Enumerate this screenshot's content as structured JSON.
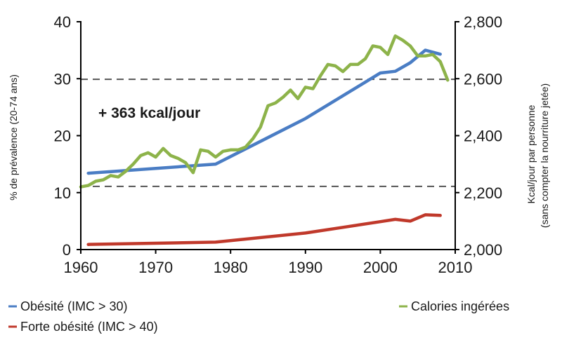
{
  "chart_data": {
    "type": "line",
    "annotation": "+ 363 kcal/jour",
    "y_left": {
      "label": "% de prévalence (20-74 ans)",
      "range": [
        0,
        40
      ],
      "ticks": [
        0,
        10,
        20,
        30,
        40
      ],
      "tick_labels": [
        "0",
        "10",
        "20",
        "30",
        "40"
      ]
    },
    "y_right": {
      "label_line1": "Kcal/jour par personne",
      "label_line2": "(sans compter la nourriture jetée)",
      "range": [
        2000,
        2800
      ],
      "ticks": [
        2000,
        2200,
        2400,
        2600,
        2800
      ],
      "tick_labels": [
        "2,000",
        "2,200",
        "2,400",
        "2,600",
        "2,800"
      ]
    },
    "x_axis": {
      "range": [
        1960,
        2010
      ],
      "ticks": [
        1960,
        1970,
        1980,
        1990,
        2000,
        2010
      ],
      "tick_labels": [
        "1960",
        "1970",
        "1980",
        "1990",
        "2000",
        "2010"
      ]
    },
    "reference_lines_right": [
      2222,
      2598
    ],
    "series": [
      {
        "name": "Obésité (IMC > 30)",
        "color": "#4a7dc4",
        "axis": "left",
        "points": [
          [
            1961,
            13.4
          ],
          [
            1978,
            15.0
          ],
          [
            1990,
            23.0
          ],
          [
            2000,
            31.0
          ],
          [
            2002,
            31.3
          ],
          [
            2004,
            32.8
          ],
          [
            2006,
            35.0
          ],
          [
            2008,
            34.3
          ]
        ]
      },
      {
        "name": "Forte obésité (IMC > 40)",
        "color": "#c0392b",
        "axis": "left",
        "points": [
          [
            1961,
            0.9
          ],
          [
            1978,
            1.3
          ],
          [
            1990,
            2.9
          ],
          [
            1995,
            3.9
          ],
          [
            2000,
            4.9
          ],
          [
            2002,
            5.3
          ],
          [
            2004,
            5.0
          ],
          [
            2006,
            6.1
          ],
          [
            2008,
            6.0
          ]
        ]
      },
      {
        "name": "Calories ingérées",
        "color": "#8db34a",
        "axis": "right",
        "points": [
          [
            1960,
            2220
          ],
          [
            1961,
            2225
          ],
          [
            1962,
            2240
          ],
          [
            1963,
            2245
          ],
          [
            1964,
            2260
          ],
          [
            1965,
            2255
          ],
          [
            1966,
            2275
          ],
          [
            1967,
            2300
          ],
          [
            1968,
            2330
          ],
          [
            1969,
            2340
          ],
          [
            1970,
            2325
          ],
          [
            1971,
            2355
          ],
          [
            1972,
            2330
          ],
          [
            1973,
            2320
          ],
          [
            1974,
            2305
          ],
          [
            1975,
            2270
          ],
          [
            1976,
            2350
          ],
          [
            1977,
            2345
          ],
          [
            1978,
            2325
          ],
          [
            1979,
            2345
          ],
          [
            1980,
            2350
          ],
          [
            1981,
            2350
          ],
          [
            1982,
            2360
          ],
          [
            1983,
            2390
          ],
          [
            1984,
            2430
          ],
          [
            1985,
            2505
          ],
          [
            1986,
            2515
          ],
          [
            1987,
            2535
          ],
          [
            1988,
            2560
          ],
          [
            1989,
            2530
          ],
          [
            1990,
            2570
          ],
          [
            1991,
            2565
          ],
          [
            1992,
            2610
          ],
          [
            1993,
            2650
          ],
          [
            1994,
            2645
          ],
          [
            1995,
            2625
          ],
          [
            1996,
            2650
          ],
          [
            1997,
            2650
          ],
          [
            1998,
            2670
          ],
          [
            1999,
            2715
          ],
          [
            2000,
            2710
          ],
          [
            2001,
            2685
          ],
          [
            2002,
            2750
          ],
          [
            2003,
            2735
          ],
          [
            2004,
            2715
          ],
          [
            2005,
            2680
          ],
          [
            2006,
            2680
          ],
          [
            2007,
            2685
          ],
          [
            2008,
            2660
          ],
          [
            2009,
            2595
          ]
        ]
      }
    ]
  }
}
